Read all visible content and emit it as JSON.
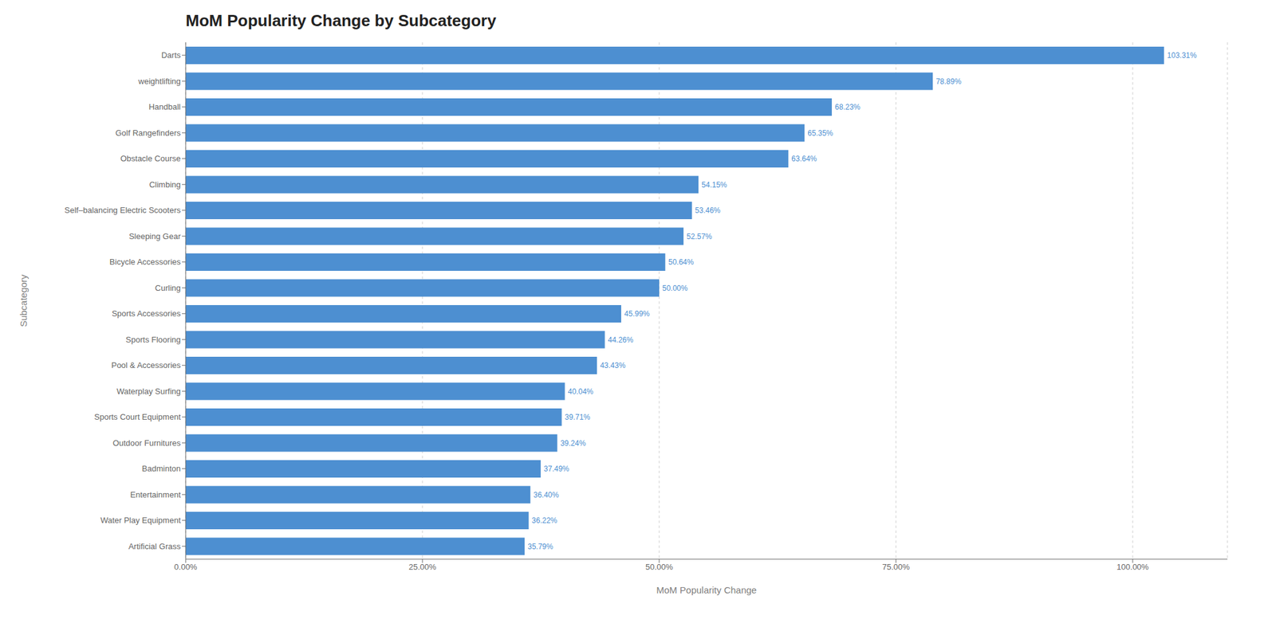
{
  "chart_data": {
    "type": "bar",
    "orientation": "horizontal",
    "title": "MoM Popularity Change by Subcategory",
    "xlabel": "MoM Popularity Change",
    "ylabel": "Subcategory",
    "categories": [
      "Artificial Grass",
      "Water Play Equipment",
      "Entertainment",
      "Badminton",
      "Outdoor Furnitures",
      "Sports Court Equipment",
      "Waterplay Surfing",
      "Pool & Accessories",
      "Sports Flooring",
      "Sports Accessories",
      "Curling",
      "Bicycle Accessories",
      "Sleeping Gear",
      "Self–balancing Electric Scooters",
      "Climbing",
      "Obstacle Course",
      "Golf Rangefinders",
      "Handball",
      "weightlifting",
      "Darts"
    ],
    "values": [
      35.79,
      36.22,
      36.4,
      37.49,
      39.24,
      39.71,
      40.04,
      43.43,
      44.26,
      45.99,
      50.0,
      50.64,
      52.57,
      53.46,
      54.15,
      63.64,
      65.35,
      68.23,
      78.89,
      103.31
    ],
    "value_labels": [
      "35.79%",
      "36.22%",
      "36.40%",
      "37.49%",
      "39.24%",
      "39.71%",
      "40.04%",
      "43.43%",
      "44.26%",
      "45.99%",
      "50.00%",
      "50.64%",
      "52.57%",
      "53.46%",
      "54.15%",
      "63.64%",
      "65.35%",
      "68.23%",
      "78.89%",
      "103.31%"
    ],
    "data_labels": true,
    "color": "#4d8fd1",
    "xlim": [
      0,
      110
    ],
    "xticks": [
      {
        "value": 0,
        "label": "0.00%"
      },
      {
        "value": 25,
        "label": "25.00%"
      },
      {
        "value": 50,
        "label": "50.00%"
      },
      {
        "value": 75,
        "label": "75.00%"
      },
      {
        "value": 100,
        "label": "100.00%"
      }
    ],
    "grid": true
  }
}
